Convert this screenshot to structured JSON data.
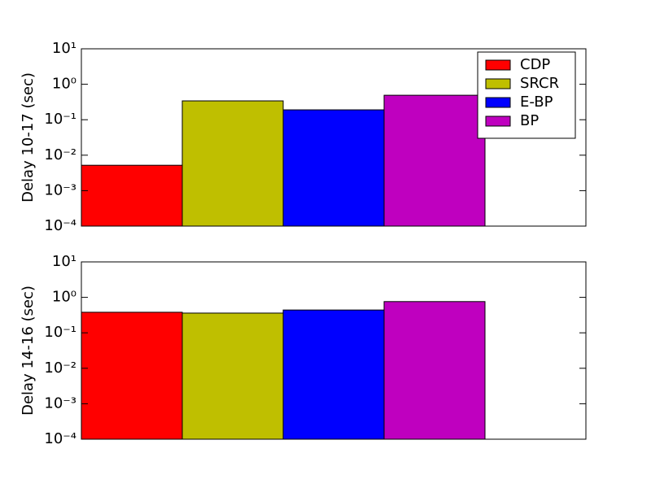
{
  "chart_data": [
    {
      "type": "bar",
      "ylabel": "Delay 10-17 (sec)",
      "log_y": true,
      "ylim": [
        0.0001,
        10
      ],
      "yticks": [
        {
          "value": 0.0001,
          "label": "10⁻⁴"
        },
        {
          "value": 0.001,
          "label": "10⁻³"
        },
        {
          "value": 0.01,
          "label": "10⁻²"
        },
        {
          "value": 0.1,
          "label": "10⁻¹"
        },
        {
          "value": 1,
          "label": "10⁰"
        },
        {
          "value": 10,
          "label": "10¹"
        }
      ],
      "legend": "upper right",
      "series": [
        {
          "name": "CDP",
          "color": "#ff0000",
          "values": [
            0.0052
          ]
        },
        {
          "name": "SRCR",
          "color": "#bfbf00",
          "values": [
            0.34
          ]
        },
        {
          "name": "E-BP",
          "color": "#0000ff",
          "values": [
            0.19
          ]
        },
        {
          "name": "BP",
          "color": "#bf00bf",
          "values": [
            0.49
          ]
        }
      ]
    },
    {
      "type": "bar",
      "ylabel": "Delay 14-16 (sec)",
      "log_y": true,
      "ylim": [
        0.0001,
        10
      ],
      "yticks": [
        {
          "value": 0.0001,
          "label": "10⁻⁴"
        },
        {
          "value": 0.001,
          "label": "10⁻³"
        },
        {
          "value": 0.01,
          "label": "10⁻²"
        },
        {
          "value": 0.1,
          "label": "10⁻¹"
        },
        {
          "value": 1,
          "label": "10⁰"
        },
        {
          "value": 10,
          "label": "10¹"
        }
      ],
      "series": [
        {
          "name": "CDP",
          "color": "#ff0000",
          "values": [
            0.38
          ]
        },
        {
          "name": "SRCR",
          "color": "#bfbf00",
          "values": [
            0.36
          ]
        },
        {
          "name": "E-BP",
          "color": "#0000ff",
          "values": [
            0.44
          ]
        },
        {
          "name": "BP",
          "color": "#bf00bf",
          "values": [
            0.76
          ]
        }
      ]
    }
  ]
}
